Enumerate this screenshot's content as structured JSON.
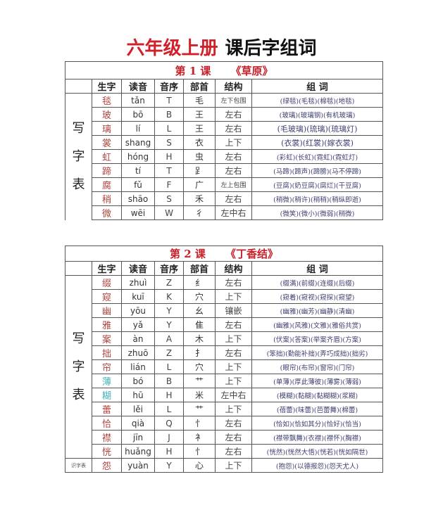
{
  "title": {
    "red": "六年级上册",
    "black": "课后字组词"
  },
  "headers": [
    "生字",
    "读音",
    "音序",
    "部首",
    "结构",
    "组  词"
  ],
  "side_label": [
    "写",
    "字",
    "表"
  ],
  "colors": {
    "accent_red": "#d0202a",
    "char_red": "#b0443e",
    "char_cyan": "#3fb3b8",
    "word_blue": "#3e3e70"
  },
  "lessons": [
    {
      "number": "第 1 课",
      "name": "《草原》",
      "rows": [
        {
          "char": "毯",
          "pinyin": "tǎn",
          "index": "T",
          "radical": "毛",
          "structure": "左下包围",
          "words": "(绿毯)(毛毯)(棉毯)(地毯)"
        },
        {
          "char": "玻",
          "pinyin": "bō",
          "index": "B",
          "radical": "王",
          "structure": "左右",
          "words": "(玻璃)(玻璃钢)(有机玻璃)"
        },
        {
          "char": "璃",
          "pinyin": "lí",
          "index": "L",
          "radical": "王",
          "structure": "左右",
          "words": "(毛玻璃)(琉璃)(琉璃灯)"
        },
        {
          "char": "裳",
          "pinyin": "shang",
          "index": "S",
          "radical": "衣",
          "structure": "上下",
          "words": "(衣裳)(红裳)(嫁衣裳)"
        },
        {
          "char": "虹",
          "pinyin": "hóng",
          "index": "H",
          "radical": "虫",
          "structure": "左右",
          "words": "(彩虹)(长虹)(霓虹)(霓虹灯)"
        },
        {
          "char": "蹄",
          "pinyin": "tí",
          "index": "T",
          "radical": "⻊",
          "structure": "左右",
          "words": "(马蹄)(蹄声)(蹄膀)(马不停蹄)"
        },
        {
          "char": "腐",
          "pinyin": "fǔ",
          "index": "F",
          "radical": "广",
          "structure": "左上包围",
          "words": "(豆腐)(奶豆腐)(腐烂)(干豆腐)"
        },
        {
          "char": "稍",
          "pinyin": "shāo",
          "index": "S",
          "radical": "禾",
          "structure": "左右",
          "words": "(稍微)(稍许)(稍稍)(稍纵即逝)"
        },
        {
          "char": "微",
          "pinyin": "wēi",
          "index": "W",
          "radical": "彳",
          "structure": "左中右",
          "words": "(微笑)(微小)(微弱)(稍微)"
        }
      ]
    },
    {
      "number": "第 2 课",
      "name": "《丁香结》",
      "rows": [
        {
          "char": "缀",
          "pinyin": "zhuì",
          "index": "Z",
          "radical": "纟",
          "structure": "左右",
          "words": "(缀满)(前缀)(连缀)(后缀)"
        },
        {
          "char": "窥",
          "pinyin": "kuī",
          "index": "K",
          "radical": "穴",
          "structure": "上下",
          "words": "(窥着)(窥视)(窥探)(窥望)"
        },
        {
          "char": "幽",
          "pinyin": "yōu",
          "index": "Y",
          "radical": "幺",
          "structure": "镶嵌",
          "words": "(幽雅)(幽芳)(幽静)(清幽)"
        },
        {
          "char": "雅",
          "pinyin": "yǎ",
          "index": "Y",
          "radical": "隹",
          "structure": "左右",
          "words": "(幽雅)(风雅)(文雅)(雅俗共赏)"
        },
        {
          "char": "案",
          "pinyin": "àn",
          "index": "A",
          "radical": "木",
          "structure": "上下",
          "words": "(伏案)(答案)(举案齐眉)(方案)"
        },
        {
          "char": "拙",
          "pinyin": "zhuō",
          "index": "Z",
          "radical": "扌",
          "structure": "左右",
          "words": "(笨拙)(勤能补拙)(弄巧成拙)(拙劣)"
        },
        {
          "char": "帘",
          "pinyin": "lián",
          "index": "L",
          "radical": "穴",
          "structure": "上下",
          "words": "(眼帘)(布帘)(窗帘)(门帘)"
        },
        {
          "char": "薄",
          "pinyin": "bó",
          "index": "B",
          "radical": "艹",
          "structure": "上下",
          "words": "(单薄)(厚此薄彼)(薄雾)(薄弱)"
        },
        {
          "char": "糊",
          "pinyin": "hū",
          "index": "H",
          "radical": "米",
          "structure": "左中右",
          "words": "(模糊)(黏糊)(黏糊糊)(浆糊)"
        },
        {
          "char": "蕾",
          "pinyin": "lěi",
          "index": "L",
          "radical": "艹",
          "structure": "上下",
          "words": "(蓓蕾)(味蕾)(芭蕾舞)(棉蕾)"
        },
        {
          "char": "恰",
          "pinyin": "qià",
          "index": "Q",
          "radical": "忄",
          "structure": "左右",
          "words": "(恰如)(恰如其分)(恰好)(恰当)"
        },
        {
          "char": "襟",
          "pinyin": "jīn",
          "index": "J",
          "radical": "衤",
          "structure": "左右",
          "words": "(襟带飘舞)(衣襟)(襟怀)(胸襟)"
        },
        {
          "char": "恍",
          "pinyin": "huǎng",
          "index": "H",
          "radical": "忄",
          "structure": "左右",
          "words": "(恍然)(恍然大悟)(恍若)(恍如隔世)"
        },
        {
          "char": "怨",
          "pinyin": "yuàn",
          "index": "Y",
          "radical": "心",
          "structure": "上下",
          "words": "(抱怨)(以德报怨)(怨天尤人)"
        }
      ],
      "footer_label": "识字表"
    }
  ]
}
